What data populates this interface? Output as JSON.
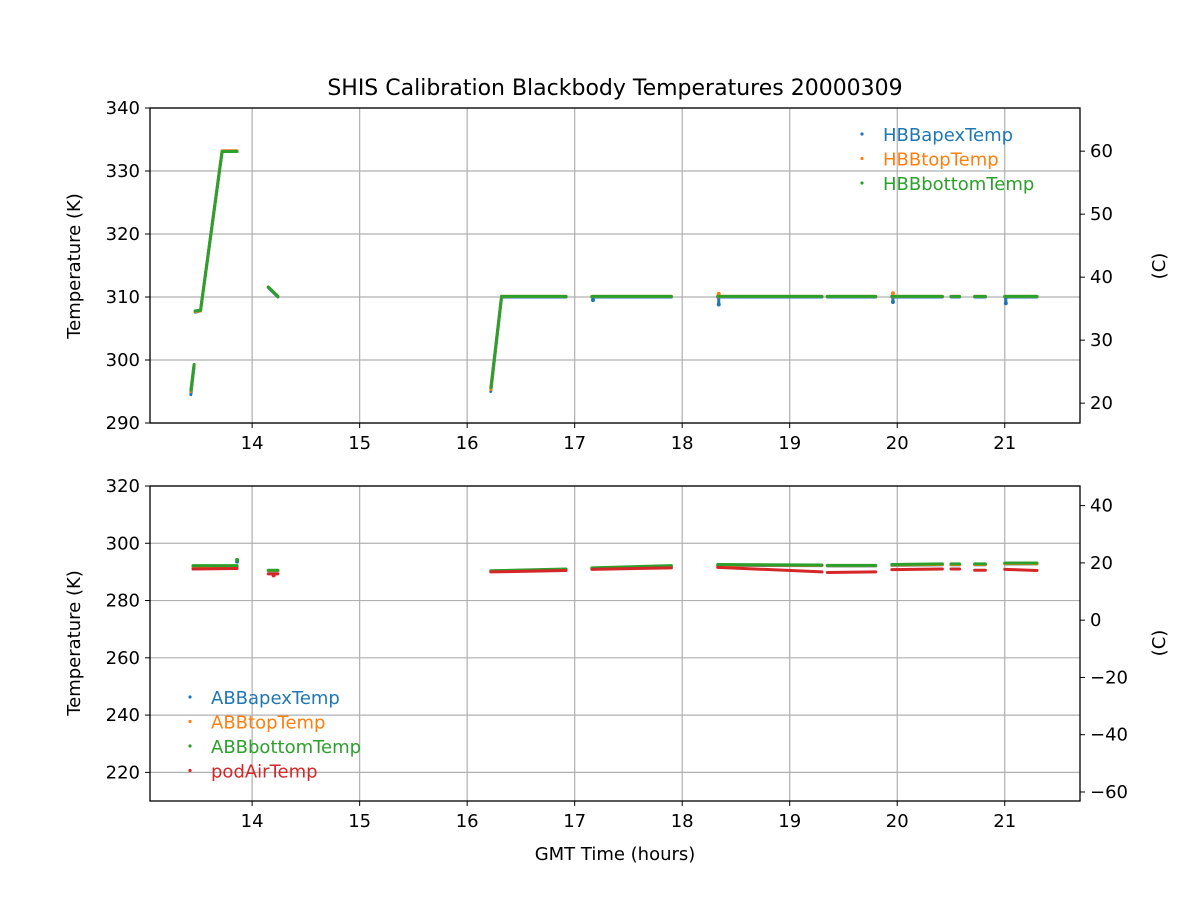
{
  "chart_data": [
    {
      "type": "scatter",
      "title": "SHIS Calibration Blackbody Temperatures 20000309",
      "xlabel": "",
      "ylabel": "Temperature (K)",
      "ylabel_right": "(C)",
      "xlim": [
        13.05,
        21.7
      ],
      "ylim": [
        290,
        340
      ],
      "ylim_right": [
        16.85,
        66.85
      ],
      "x_ticks": [
        "14",
        "15",
        "16",
        "17",
        "18",
        "19",
        "20",
        "21"
      ],
      "y_ticks": [
        "290",
        "300",
        "310",
        "320",
        "330",
        "340"
      ],
      "y_ticks_right": [
        "20",
        "30",
        "40",
        "50",
        "60"
      ],
      "grid": true,
      "legend_position": "upper-right",
      "series": [
        {
          "name": "HBBapexTemp",
          "color": "#1f77b4",
          "segments": [
            [
              13.43,
              294.5,
              13.46,
              299.0
            ],
            [
              13.47,
              307.6,
              13.52,
              307.8
            ],
            [
              13.52,
              307.8,
              13.72,
              333.0
            ],
            [
              13.72,
              333.2,
              13.86,
              333.2
            ],
            [
              14.15,
              311.5,
              14.24,
              310.0
            ],
            [
              16.22,
              295.0,
              16.32,
              310.0
            ],
            [
              16.32,
              310.0,
              16.92,
              310.0
            ],
            [
              17.16,
              310.0,
              17.9,
              310.0
            ],
            [
              18.33,
              310.0,
              19.3,
              310.0
            ],
            [
              19.35,
              310.0,
              19.8,
              310.0
            ],
            [
              19.95,
              310.0,
              20.42,
              310.0
            ],
            [
              20.5,
              310.0,
              20.58,
              310.0
            ],
            [
              20.72,
              310.0,
              20.82,
              310.0
            ],
            [
              21.0,
              310.0,
              21.3,
              310.0
            ]
          ],
          "spikes": [
            [
              17.17,
              309.5
            ],
            [
              18.34,
              308.8
            ],
            [
              19.96,
              309.2
            ],
            [
              21.01,
              309.0
            ]
          ]
        },
        {
          "name": "HBBtopTemp",
          "color": "#ff7f0e",
          "segments": [
            [
              13.43,
              295.0,
              13.46,
              299.2
            ],
            [
              13.47,
              307.7,
              13.52,
              307.8
            ],
            [
              13.52,
              307.8,
              13.72,
              333.1
            ],
            [
              13.72,
              333.2,
              13.86,
              333.2
            ],
            [
              14.15,
              311.6,
              14.24,
              310.1
            ],
            [
              16.22,
              295.3,
              16.32,
              310.1
            ],
            [
              16.32,
              310.1,
              16.92,
              310.1
            ],
            [
              17.16,
              310.1,
              17.9,
              310.1
            ],
            [
              18.33,
              310.1,
              19.3,
              310.1
            ],
            [
              19.35,
              310.1,
              19.8,
              310.1
            ],
            [
              19.95,
              310.1,
              20.42,
              310.1
            ],
            [
              20.5,
              310.1,
              20.58,
              310.1
            ],
            [
              20.72,
              310.1,
              20.82,
              310.1
            ],
            [
              21.0,
              310.1,
              21.3,
              310.1
            ]
          ],
          "spikes": [
            [
              18.34,
              310.5
            ],
            [
              19.96,
              310.6
            ]
          ]
        },
        {
          "name": "HBBbottomTemp",
          "color": "#2ca02c",
          "segments": [
            [
              13.43,
              295.2,
              13.46,
              299.3
            ],
            [
              13.47,
              307.8,
              13.52,
              307.9
            ],
            [
              13.52,
              307.9,
              13.72,
              333.0
            ],
            [
              13.72,
              333.1,
              13.86,
              333.1
            ],
            [
              14.15,
              311.6,
              14.24,
              310.1
            ],
            [
              16.22,
              295.6,
              16.32,
              310.1
            ],
            [
              16.32,
              310.1,
              16.92,
              310.1
            ],
            [
              17.16,
              310.1,
              17.9,
              310.1
            ],
            [
              18.33,
              310.1,
              19.3,
              310.1
            ],
            [
              19.35,
              310.1,
              19.8,
              310.1
            ],
            [
              19.95,
              310.1,
              20.42,
              310.1
            ],
            [
              20.5,
              310.1,
              20.58,
              310.1
            ],
            [
              20.72,
              310.1,
              20.82,
              310.1
            ],
            [
              21.0,
              310.1,
              21.3,
              310.1
            ]
          ],
          "spikes": []
        }
      ]
    },
    {
      "type": "scatter",
      "title": "",
      "xlabel": "GMT Time (hours)",
      "ylabel": "Temperature (K)",
      "ylabel_right": "(C)",
      "xlim": [
        13.05,
        21.7
      ],
      "ylim": [
        210,
        320
      ],
      "ylim_right": [
        -63.15,
        46.85
      ],
      "x_ticks": [
        "14",
        "15",
        "16",
        "17",
        "18",
        "19",
        "20",
        "21"
      ],
      "y_ticks": [
        "220",
        "240",
        "260",
        "280",
        "300",
        "320"
      ],
      "y_ticks_right": [
        "−60",
        "−40",
        "−20",
        "0",
        "20",
        "40"
      ],
      "grid": true,
      "legend_position": "lower-left",
      "series": [
        {
          "name": "ABBapexTemp",
          "color": "#1f77b4",
          "segments": [
            [
              13.45,
              291.8,
              13.86,
              291.8
            ],
            [
              14.15,
              290.4,
              14.24,
              290.4
            ],
            [
              16.22,
              290.2,
              16.92,
              290.8
            ],
            [
              17.16,
              291.2,
              17.9,
              292.0
            ],
            [
              18.33,
              292.3,
              19.3,
              292.2
            ],
            [
              19.35,
              292.1,
              19.8,
              292.1
            ],
            [
              19.95,
              292.3,
              20.42,
              292.5
            ],
            [
              20.5,
              292.5,
              20.58,
              292.5
            ],
            [
              20.72,
              292.5,
              20.82,
              292.5
            ],
            [
              21.0,
              292.8,
              21.3,
              292.8
            ]
          ],
          "spikes": [
            [
              13.86,
              293.6
            ]
          ]
        },
        {
          "name": "ABBtopTemp",
          "color": "#ff7f0e",
          "segments": [
            [
              13.45,
              292.0,
              13.86,
              292.0
            ],
            [
              14.15,
              290.5,
              14.24,
              290.5
            ],
            [
              16.22,
              290.3,
              16.92,
              290.9
            ],
            [
              17.16,
              291.3,
              17.9,
              292.1
            ],
            [
              18.33,
              292.4,
              19.3,
              292.3
            ],
            [
              19.35,
              292.2,
              19.8,
              292.2
            ],
            [
              19.95,
              292.4,
              20.42,
              292.6
            ],
            [
              20.5,
              292.6,
              20.58,
              292.6
            ],
            [
              20.72,
              292.6,
              20.82,
              292.6
            ],
            [
              21.0,
              292.9,
              21.3,
              292.9
            ]
          ],
          "spikes": []
        },
        {
          "name": "ABBbottomTemp",
          "color": "#2ca02c",
          "segments": [
            [
              13.45,
              292.2,
              13.86,
              292.2
            ],
            [
              14.15,
              290.6,
              14.24,
              290.6
            ],
            [
              16.22,
              290.4,
              16.92,
              291.0
            ],
            [
              17.16,
              291.4,
              17.9,
              292.2
            ],
            [
              18.33,
              292.6,
              19.3,
              292.4
            ],
            [
              19.35,
              292.3,
              19.8,
              292.3
            ],
            [
              19.95,
              292.6,
              20.42,
              292.8
            ],
            [
              20.5,
              292.8,
              20.58,
              292.8
            ],
            [
              20.72,
              292.8,
              20.82,
              292.8
            ],
            [
              21.0,
              293.1,
              21.3,
              293.1
            ]
          ],
          "spikes": [
            [
              13.86,
              294.2
            ]
          ]
        },
        {
          "name": "podAirTemp",
          "color": "#d62728",
          "segments": [
            [
              13.45,
              291.0,
              13.86,
              291.2
            ],
            [
              14.15,
              289.3,
              14.24,
              289.3
            ],
            [
              16.22,
              290.0,
              16.92,
              290.5
            ],
            [
              17.16,
              290.9,
              17.9,
              291.4
            ],
            [
              18.33,
              291.6,
              19.3,
              290.0
            ],
            [
              19.35,
              289.8,
              19.8,
              290.0
            ],
            [
              19.95,
              290.8,
              20.42,
              291.0
            ],
            [
              20.5,
              291.0,
              20.58,
              291.0
            ],
            [
              20.72,
              290.6,
              20.82,
              290.6
            ],
            [
              21.0,
              290.9,
              21.3,
              290.5
            ]
          ],
          "spikes": [
            [
              14.2,
              288.8
            ]
          ]
        }
      ]
    }
  ]
}
